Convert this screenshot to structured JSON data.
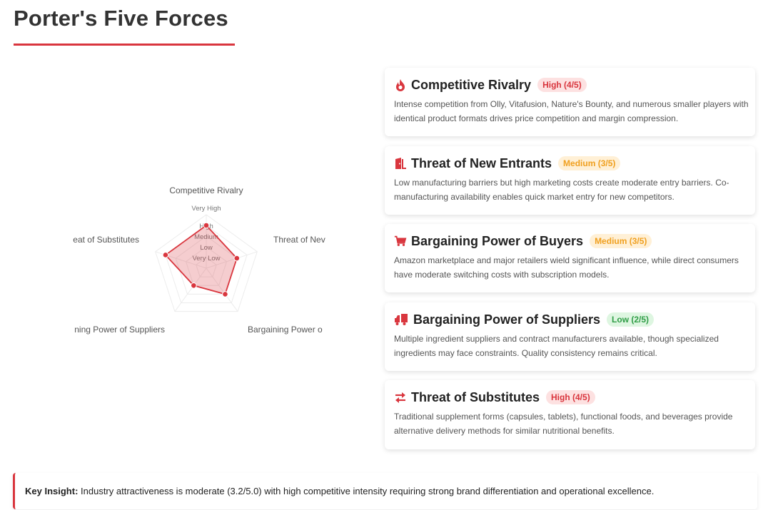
{
  "page": {
    "title": "Porter's Five Forces",
    "accent_color": "#d9363e"
  },
  "chart_data": {
    "type": "radar",
    "axes": [
      "Competitive Rivalry",
      "Threat of New Entrants",
      "Bargaining Power of Buyers",
      "Bargaining Power of Suppliers",
      "Threat of Substitutes"
    ],
    "axis_labels_visible": [
      "Competitive Rivalry",
      "Threat of Nev",
      "Bargaining Power o",
      "ning Power of Suppliers",
      "eat of Substitutes"
    ],
    "levels": [
      "Very Low",
      "Low",
      "Medium",
      "High",
      "Very High"
    ],
    "range": [
      0,
      5
    ],
    "values": [
      4,
      3,
      3,
      2,
      4
    ],
    "fill_color": "rgba(217,54,62,0.25)",
    "line_color": "#d9363e"
  },
  "forces": [
    {
      "icon": "fire-icon",
      "title": "Competitive Rivalry",
      "badge": "High (4/5)",
      "level": "high",
      "description": "Intense competition from Olly, Vitafusion, Nature's Bounty, and numerous smaller players with identical product formats drives price competition and margin compression."
    },
    {
      "icon": "door-icon",
      "title": "Threat of New Entrants",
      "badge": "Medium (3/5)",
      "level": "medium",
      "description": "Low manufacturing barriers but high marketing costs create moderate entry barriers. Co-manufacturing availability enables quick market entry for new competitors."
    },
    {
      "icon": "cart-icon",
      "title": "Bargaining Power of Buyers",
      "badge": "Medium (3/5)",
      "level": "medium",
      "description": "Amazon marketplace and major retailers wield significant influence, while direct consumers have moderate switching costs with subscription models."
    },
    {
      "icon": "truck-icon",
      "title": "Bargaining Power of Suppliers",
      "badge": "Low (2/5)",
      "level": "low",
      "description": "Multiple ingredient suppliers and contract manufacturers available, though specialized ingredients may face constraints. Quality consistency remains critical."
    },
    {
      "icon": "exchange-icon",
      "title": "Threat of Substitutes",
      "badge": "High (4/5)",
      "level": "high",
      "description": "Traditional supplement forms (capsules, tablets), functional foods, and beverages provide alternative delivery methods for similar nutritional benefits."
    }
  ],
  "insight": {
    "label": "Key Insight:",
    "text": " Industry attractiveness is moderate (3.2/5.0) with high competitive intensity requiring strong brand differentiation and operational excellence."
  }
}
